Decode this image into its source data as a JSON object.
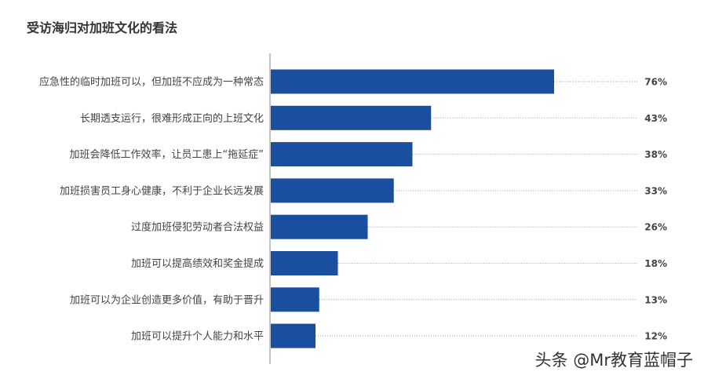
{
  "title": "受访海归对加班文化的看法",
  "watermark": "头条 @Mr教育蓝帽子",
  "chart_data": {
    "type": "bar",
    "orientation": "horizontal",
    "title": "受访海归对加班文化的看法",
    "categories": [
      "应急性的临时加班可以，但加班不应成为一种常态",
      "长期透支运行，很难形成正向的上班文化",
      "加班会降低工作效率，让员工患上“拖延症”",
      "加班损害员工身心健康，不利于企业长远发展",
      "过度加班侵犯劳动者合法权益",
      "加班可以提高绩效和奖金提成",
      "加班可以为企业创造更多价值，有助于晋升",
      "加班可以提升个人能力和水平"
    ],
    "values": [
      76,
      43,
      38,
      33,
      26,
      18,
      13,
      12
    ],
    "value_labels": [
      "76%",
      "43%",
      "38%",
      "33%",
      "26%",
      "18%",
      "13%",
      "12%"
    ],
    "unit": "%",
    "color": "#1a4fa0",
    "xlim": [
      0,
      100
    ],
    "grid": false
  }
}
